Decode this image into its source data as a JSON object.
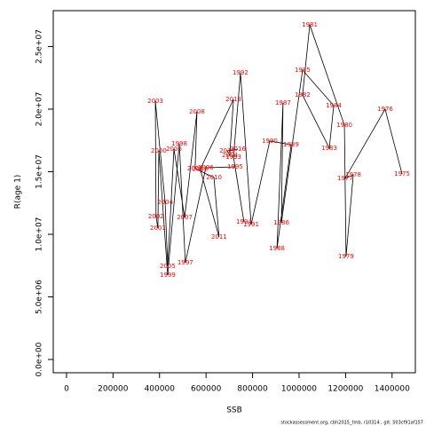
{
  "chart_data": {
    "type": "line",
    "x_label": "SSB",
    "y_label": "R(age 1)",
    "labels": [
      "1975",
      "1976",
      "1977",
      "1978",
      "1979",
      "1980",
      "1981",
      "1982",
      "1983",
      "1984",
      "1985",
      "1986",
      "1987",
      "1988",
      "1989",
      "1990",
      "1991",
      "1992",
      "1993",
      "1994",
      "1995",
      "1996",
      "1997",
      "1998",
      "1999",
      "2000",
      "2001",
      "2002",
      "2003",
      "2004",
      "2005",
      "2006",
      "2007",
      "2008",
      "2009",
      "2010",
      "2011",
      "2012",
      "2013",
      "2014",
      "2015",
      "2016"
    ],
    "x": [
      1443000,
      1370000,
      1198000,
      1233000,
      1202000,
      1195000,
      1046000,
      1015000,
      1130000,
      1149000,
      1015000,
      924000,
      931000,
      905000,
      966000,
      874000,
      794000,
      748000,
      718000,
      763000,
      725000,
      599000,
      511000,
      485000,
      435000,
      397000,
      393000,
      385000,
      382000,
      424000,
      435000,
      462000,
      508000,
      561000,
      553000,
      634000,
      656000,
      575000,
      718000,
      702000,
      691000,
      737000
    ],
    "y": [
      14820000,
      20000000,
      14470000,
      14750000,
      8230000,
      18720000,
      26740000,
      21130000,
      16880000,
      20280000,
      23120000,
      10920000,
      20500000,
      8870000,
      17160000,
      17450000,
      10780000,
      22900000,
      16170000,
      10990000,
      15390000,
      15320000,
      7730000,
      17230000,
      6740000,
      16670000,
      10500000,
      11420000,
      20640000,
      12550000,
      7450000,
      16810000,
      11350000,
      19790000,
      15250000,
      14540000,
      9790000,
      15200000,
      20780000,
      16300000,
      16670000,
      16810000
    ],
    "line_color": "#000000",
    "label_color": "#ff0000",
    "xlim": [
      -57000,
      1500000
    ],
    "ylim": [
      -1060000,
      27870000
    ],
    "xticks": [
      0,
      200000,
      400000,
      600000,
      800000,
      1000000,
      1200000,
      1400000
    ],
    "yticks": [
      {
        "value": 0,
        "label": "0.0e+00"
      },
      {
        "value": 5000000,
        "label": "5.0e+06"
      },
      {
        "value": 10000000,
        "label": "1.0e+07"
      },
      {
        "value": 15000000,
        "label": "1.5e+07"
      },
      {
        "value": 20000000,
        "label": "2.0e+07"
      },
      {
        "value": 25000000,
        "label": "2.5e+07"
      }
    ],
    "footer": "stockassessment.org, cbh2015_tmb, r10314 , git: 503cf91af157"
  }
}
